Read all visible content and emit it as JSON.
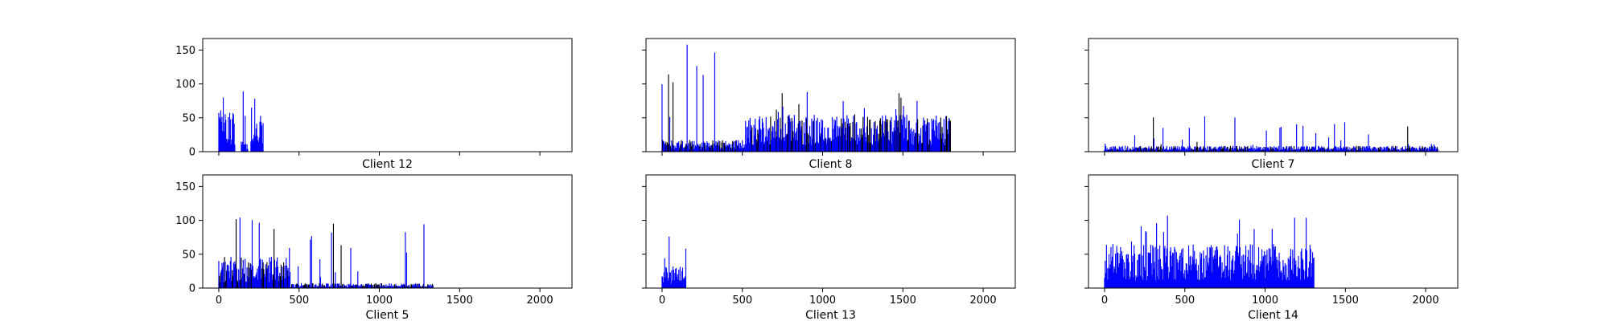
{
  "figure": {
    "background": "#ffffff"
  },
  "chart_data": [
    {
      "type": "bar",
      "xlabel": "Client 12",
      "xlim": [
        -100,
        2200
      ],
      "ylim": [
        0,
        167
      ],
      "xticks": [
        0,
        500,
        1000,
        1500,
        2000
      ],
      "yticks": [
        0,
        50,
        100,
        150
      ],
      "show_xtick_labels": false,
      "show_ytick_labels": true,
      "grid": false,
      "segments": [
        {
          "x0": 0,
          "x1": 105,
          "mean": 40,
          "max": 80,
          "colors": [
            "#0000ff"
          ]
        },
        {
          "x0": 140,
          "x1": 185,
          "mean": 12,
          "max": 89,
          "colors": [
            "#0000ff"
          ]
        },
        {
          "x0": 200,
          "x1": 280,
          "mean": 38,
          "max": 78,
          "colors": [
            "#0000ff"
          ]
        }
      ]
    },
    {
      "type": "bar",
      "xlabel": "Client 8",
      "xlim": [
        -100,
        2200
      ],
      "ylim": [
        0,
        167
      ],
      "xticks": [
        0,
        500,
        1000,
        1500,
        2000
      ],
      "yticks": [
        0,
        50,
        100,
        150
      ],
      "show_xtick_labels": false,
      "show_ytick_labels": false,
      "grid": false,
      "segments": [
        {
          "x0": 0,
          "x1": 520,
          "mean": 12,
          "max": 158,
          "colors": [
            "#0000ff",
            "#000000"
          ]
        },
        {
          "x0": 520,
          "x1": 1800,
          "mean": 38,
          "max": 88,
          "colors": [
            "#0000ff",
            "#000000"
          ]
        }
      ]
    },
    {
      "type": "bar",
      "xlabel": "Client 7",
      "xlim": [
        -100,
        2200
      ],
      "ylim": [
        0,
        167
      ],
      "xticks": [
        0,
        500,
        1000,
        1500,
        2000
      ],
      "yticks": [
        0,
        50,
        100,
        150
      ],
      "show_xtick_labels": false,
      "show_ytick_labels": false,
      "grid": false,
      "segments": [
        {
          "x0": 0,
          "x1": 2080,
          "mean": 6,
          "max": 52,
          "colors": [
            "#0000ff",
            "#000000"
          ]
        }
      ]
    },
    {
      "type": "bar",
      "xlabel": "Client 5",
      "xlim": [
        -100,
        2200
      ],
      "ylim": [
        0,
        167
      ],
      "xticks": [
        0,
        500,
        1000,
        1500,
        2000
      ],
      "yticks": [
        0,
        50,
        100,
        150
      ],
      "show_xtick_labels": true,
      "show_ytick_labels": true,
      "grid": false,
      "segments": [
        {
          "x0": 0,
          "x1": 450,
          "mean": 32,
          "max": 104,
          "colors": [
            "#0000ff",
            "#000000"
          ]
        },
        {
          "x0": 450,
          "x1": 1340,
          "mean": 5,
          "max": 95,
          "colors": [
            "#0000ff",
            "#000000"
          ]
        }
      ]
    },
    {
      "type": "bar",
      "xlabel": "Client 13",
      "xlim": [
        -100,
        2200
      ],
      "ylim": [
        0,
        167
      ],
      "xticks": [
        0,
        500,
        1000,
        1500,
        2000
      ],
      "yticks": [
        0,
        50,
        100,
        150
      ],
      "show_xtick_labels": true,
      "show_ytick_labels": false,
      "grid": false,
      "segments": [
        {
          "x0": 0,
          "x1": 155,
          "mean": 22,
          "max": 76,
          "colors": [
            "#0000ff"
          ]
        }
      ]
    },
    {
      "type": "bar",
      "xlabel": "Client 14",
      "xlim": [
        -100,
        2200
      ],
      "ylim": [
        0,
        167
      ],
      "xticks": [
        0,
        500,
        1000,
        1500,
        2000
      ],
      "yticks": [
        0,
        50,
        100,
        150
      ],
      "show_xtick_labels": true,
      "show_ytick_labels": false,
      "grid": false,
      "segments": [
        {
          "x0": 0,
          "x1": 1310,
          "mean": 45,
          "max": 107,
          "colors": [
            "#0000ff"
          ]
        }
      ]
    }
  ]
}
